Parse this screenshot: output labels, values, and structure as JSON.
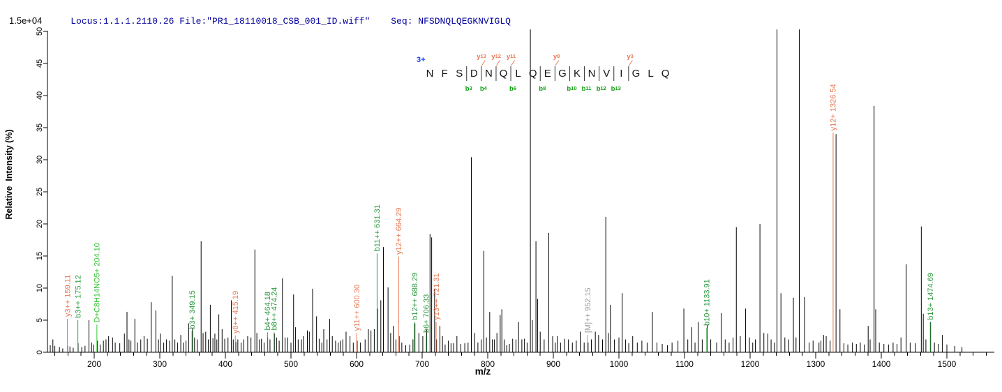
{
  "header": {
    "locus_file_text": "Locus:1.1.1.2110.26 File:\"PR1_18110018_CSB_001_ID.wiff\"",
    "seq_text": "Seq: NFSDNQLQEGKNVIGLQ"
  },
  "colors": {
    "header_text": "#0000A0",
    "peak": "#000000",
    "y_ion": "#E87A55",
    "b_ion": "#2E9A40",
    "special_ion": "#35C435",
    "precursor_ion": "#9C9C9C",
    "sequence_b_marker": "#0FA00F",
    "sequence_y_marker": "#E87A55",
    "charge_label": "#1A3EE8",
    "axis": "#000000"
  },
  "chart_data": {
    "type": "bar",
    "title": "",
    "xlabel": "m/z",
    "ylabel": "Relative  Intensity (%)",
    "intensity_scale": "1.5e+04",
    "xlim": [
      128,
      1572
    ],
    "ylim": [
      0,
      50.5
    ],
    "x_major_ticks": [
      200,
      300,
      400,
      500,
      600,
      700,
      800,
      900,
      1000,
      1100,
      1200,
      1300,
      1400,
      1500
    ],
    "x_minor_tick_step": 20,
    "y_ticks": [
      0,
      5,
      10,
      15,
      20,
      25,
      30,
      35,
      40,
      45,
      50
    ],
    "legend": "none",
    "grid": false,
    "peaks": [
      [
        133,
        1.1
      ],
      [
        137,
        2.0
      ],
      [
        140,
        1.0
      ],
      [
        147,
        0.8
      ],
      [
        152,
        0.6
      ],
      [
        159.5,
        1.0
      ],
      [
        163,
        0.9
      ],
      [
        168,
        0.7
      ],
      [
        175.5,
        1.4
      ],
      [
        181,
        0.8
      ],
      [
        186,
        1.0
      ],
      [
        192,
        5.0
      ],
      [
        196,
        1.5
      ],
      [
        199,
        1.2
      ],
      [
        205,
        1.8
      ],
      [
        209,
        1.2
      ],
      [
        214,
        1.8
      ],
      [
        218,
        2.0
      ],
      [
        222,
        2.5
      ],
      [
        228,
        2.3
      ],
      [
        232,
        1.5
      ],
      [
        239,
        1.4
      ],
      [
        246,
        2.9
      ],
      [
        250,
        6.3
      ],
      [
        253,
        2.0
      ],
      [
        256,
        1.8
      ],
      [
        262,
        5.2
      ],
      [
        266,
        1.5
      ],
      [
        271,
        2.0
      ],
      [
        276,
        2.5
      ],
      [
        281,
        2.1
      ],
      [
        287,
        7.8
      ],
      [
        294,
        6.5
      ],
      [
        298,
        2.0
      ],
      [
        301,
        2.9
      ],
      [
        306,
        1.5
      ],
      [
        310,
        2.0
      ],
      [
        315,
        1.8
      ],
      [
        319,
        11.9
      ],
      [
        323,
        2.0
      ],
      [
        327,
        1.5
      ],
      [
        332,
        2.7
      ],
      [
        336,
        1.5
      ],
      [
        340,
        1.8
      ],
      [
        344,
        4.5
      ],
      [
        350,
        3.8
      ],
      [
        353,
        2.3
      ],
      [
        357,
        2.0
      ],
      [
        363,
        17.3
      ],
      [
        366,
        3.0
      ],
      [
        370,
        3.2
      ],
      [
        374,
        2.0
      ],
      [
        377,
        7.4
      ],
      [
        381,
        2.2
      ],
      [
        384,
        2.9
      ],
      [
        387,
        2.0
      ],
      [
        390,
        5.9
      ],
      [
        395,
        3.6
      ],
      [
        399,
        2.1
      ],
      [
        404,
        2.3
      ],
      [
        409,
        8.1
      ],
      [
        412,
        2.0
      ],
      [
        416,
        1.6
      ],
      [
        419,
        2.0
      ],
      [
        424,
        1.5
      ],
      [
        428,
        2.0
      ],
      [
        434,
        2.5
      ],
      [
        439,
        2.3
      ],
      [
        445,
        16.0
      ],
      [
        448,
        3.0
      ],
      [
        452,
        2.0
      ],
      [
        455,
        2.1
      ],
      [
        459,
        1.5
      ],
      [
        464.5,
        2.3
      ],
      [
        468,
        2.0
      ],
      [
        474.8,
        2.9
      ],
      [
        478,
        2.3
      ],
      [
        482,
        1.8
      ],
      [
        487,
        11.5
      ],
      [
        491,
        2.3
      ],
      [
        495,
        2.3
      ],
      [
        500,
        1.5
      ],
      [
        504,
        9.0
      ],
      [
        507,
        3.9
      ],
      [
        511,
        2.0
      ],
      [
        516,
        2.0
      ],
      [
        519,
        2.5
      ],
      [
        525,
        3.4
      ],
      [
        528,
        3.2
      ],
      [
        533,
        9.9
      ],
      [
        539,
        5.6
      ],
      [
        543,
        2.1
      ],
      [
        547,
        1.5
      ],
      [
        550,
        3.6
      ],
      [
        555,
        2.0
      ],
      [
        559,
        5.2
      ],
      [
        563,
        2.5
      ],
      [
        568,
        1.8
      ],
      [
        572,
        1.5
      ],
      [
        575,
        1.8
      ],
      [
        579,
        2.0
      ],
      [
        584,
        3.2
      ],
      [
        590,
        2.5
      ],
      [
        595,
        1.5
      ],
      [
        601,
        1.8
      ],
      [
        606,
        1.5
      ],
      [
        613,
        2.0
      ],
      [
        618,
        3.6
      ],
      [
        622,
        3.4
      ],
      [
        627,
        3.6
      ],
      [
        632,
        6.8
      ],
      [
        637,
        8.1
      ],
      [
        641,
        16.4
      ],
      [
        648,
        10.1
      ],
      [
        652,
        3.0
      ],
      [
        656,
        4.1
      ],
      [
        660,
        2.0
      ],
      [
        665,
        2.5
      ],
      [
        669,
        1.5
      ],
      [
        675,
        1.1
      ],
      [
        681,
        1.2
      ],
      [
        686,
        2.0
      ],
      [
        689,
        4.5
      ],
      [
        695,
        3.0
      ],
      [
        701,
        2.5
      ],
      [
        707,
        3.5
      ],
      [
        712,
        18.4
      ],
      [
        714.5,
        17.9
      ],
      [
        719,
        9.9
      ],
      [
        722,
        2.0
      ],
      [
        727,
        4.1
      ],
      [
        731,
        2.5
      ],
      [
        735,
        1.2
      ],
      [
        740,
        1.8
      ],
      [
        744,
        1.4
      ],
      [
        748,
        1.4
      ],
      [
        753,
        2.5
      ],
      [
        759,
        1.3
      ],
      [
        765,
        1.4
      ],
      [
        770,
        1.5
      ],
      [
        775,
        30.4
      ],
      [
        780,
        3.0
      ],
      [
        785,
        1.5
      ],
      [
        790,
        2.0
      ],
      [
        794,
        15.8
      ],
      [
        798,
        2.3
      ],
      [
        803,
        6.3
      ],
      [
        807,
        2.0
      ],
      [
        810,
        2.0
      ],
      [
        814,
        3.0
      ],
      [
        819,
        5.8
      ],
      [
        821.5,
        6.7
      ],
      [
        825,
        2.0
      ],
      [
        829,
        1.1
      ],
      [
        833,
        1.3
      ],
      [
        838,
        2.1
      ],
      [
        843,
        2.0
      ],
      [
        847,
        4.7
      ],
      [
        852,
        2.0
      ],
      [
        856,
        2.1
      ],
      [
        860,
        1.5
      ],
      [
        865,
        50.3
      ],
      [
        868,
        5.0
      ],
      [
        873.5,
        17.3
      ],
      [
        876,
        8.3
      ],
      [
        880,
        3.2
      ],
      [
        886,
        2.0
      ],
      [
        893,
        18.6
      ],
      [
        899,
        2.5
      ],
      [
        903,
        1.5
      ],
      [
        906,
        2.5
      ],
      [
        911,
        1.5
      ],
      [
        917,
        2.1
      ],
      [
        923,
        2.0
      ],
      [
        929,
        1.5
      ],
      [
        935,
        1.8
      ],
      [
        941,
        3.2
      ],
      [
        947,
        1.5
      ],
      [
        953,
        1.5
      ],
      [
        958,
        2.0
      ],
      [
        964,
        3.2
      ],
      [
        969,
        2.7
      ],
      [
        975,
        2.0
      ],
      [
        980,
        21.1
      ],
      [
        984,
        3.0
      ],
      [
        987,
        7.4
      ],
      [
        993,
        2.0
      ],
      [
        1000,
        2.3
      ],
      [
        1005,
        9.2
      ],
      [
        1010,
        2.0
      ],
      [
        1015,
        1.4
      ],
      [
        1021,
        2.5
      ],
      [
        1028,
        1.5
      ],
      [
        1035,
        1.8
      ],
      [
        1043,
        1.5
      ],
      [
        1051,
        6.3
      ],
      [
        1058,
        1.5
      ],
      [
        1066,
        1.3
      ],
      [
        1074,
        1.1
      ],
      [
        1081,
        1.5
      ],
      [
        1090,
        1.8
      ],
      [
        1099,
        6.8
      ],
      [
        1105,
        2.0
      ],
      [
        1111,
        3.9
      ],
      [
        1116,
        1.5
      ],
      [
        1121,
        4.7
      ],
      [
        1127,
        2.0
      ],
      [
        1134.5,
        4.3
      ],
      [
        1140,
        2.0
      ],
      [
        1149,
        1.5
      ],
      [
        1156,
        6.1
      ],
      [
        1162,
        2.0
      ],
      [
        1168,
        1.5
      ],
      [
        1174,
        2.3
      ],
      [
        1179,
        19.5
      ],
      [
        1185,
        2.5
      ],
      [
        1193,
        6.8
      ],
      [
        1199,
        2.3
      ],
      [
        1204,
        1.5
      ],
      [
        1208,
        2.0
      ],
      [
        1215,
        20.0
      ],
      [
        1221,
        3.0
      ],
      [
        1227,
        2.9
      ],
      [
        1232,
        2.0
      ],
      [
        1237,
        1.5
      ],
      [
        1241,
        50.3
      ],
      [
        1247,
        9.2
      ],
      [
        1253,
        2.3
      ],
      [
        1259,
        2.0
      ],
      [
        1266,
        8.5
      ],
      [
        1270,
        2.3
      ],
      [
        1275,
        50.3
      ],
      [
        1283,
        8.6
      ],
      [
        1290,
        1.5
      ],
      [
        1296,
        1.8
      ],
      [
        1305,
        1.5
      ],
      [
        1308,
        1.8
      ],
      [
        1312,
        2.7
      ],
      [
        1316,
        2.5
      ],
      [
        1322,
        1.8
      ],
      [
        1331,
        34.0
      ],
      [
        1337,
        6.7
      ],
      [
        1343,
        1.4
      ],
      [
        1349,
        1.2
      ],
      [
        1356,
        1.5
      ],
      [
        1362,
        1.3
      ],
      [
        1368,
        1.5
      ],
      [
        1374,
        1.2
      ],
      [
        1380,
        4.1
      ],
      [
        1383,
        2.0
      ],
      [
        1389,
        38.4
      ],
      [
        1391.5,
        6.7
      ],
      [
        1397,
        1.5
      ],
      [
        1404,
        1.3
      ],
      [
        1411,
        1.2
      ],
      [
        1418,
        1.5
      ],
      [
        1424,
        1.3
      ],
      [
        1430,
        2.3
      ],
      [
        1438,
        13.7
      ],
      [
        1444,
        1.5
      ],
      [
        1452,
        1.4
      ],
      [
        1461,
        19.6
      ],
      [
        1464,
        6.0
      ],
      [
        1468,
        2.0
      ],
      [
        1475.2,
        4.7
      ],
      [
        1481,
        1.5
      ],
      [
        1487,
        1.3
      ],
      [
        1493,
        2.7
      ],
      [
        1500,
        1.2
      ],
      [
        1512,
        1.0
      ],
      [
        1523,
        0.8
      ]
    ],
    "labeled_peaks": [
      {
        "label": "y3++ 159.11",
        "mz": 159.11,
        "ion": "y",
        "line_top_pct": 5.2
      },
      {
        "label": "b3++ 175.12",
        "mz": 175.12,
        "ion": "b",
        "line_top_pct": 5.0
      },
      {
        "label": "D+C8H14NO5+ 204.10",
        "mz": 204.1,
        "ion": "special",
        "line_top_pct": 4.3
      },
      {
        "label": "b3+ 349.15",
        "mz": 349.15,
        "ion": "b",
        "line_top_pct": 3.3
      },
      {
        "label": "y8++ 415.19",
        "mz": 415.19,
        "ion": "y",
        "line_top_pct": 2.6
      },
      {
        "label": "b4+ 464.18",
        "mz": 464.18,
        "ion": "b",
        "line_top_pct": 3.1
      },
      {
        "label": "b8++ 474.24",
        "mz": 474.24,
        "ion": "b",
        "line_top_pct": 3.1
      },
      {
        "label": "y11++ 600.30",
        "mz": 600.3,
        "ion": "y",
        "line_top_pct": 3.0
      },
      {
        "label": "b11++ 631.31",
        "mz": 631.31,
        "ion": "b",
        "line_top_pct": 15.4
      },
      {
        "label": "y12++ 664.29",
        "mz": 664.29,
        "ion": "y",
        "line_top_pct": 14.9
      },
      {
        "label": "b12++ 688.29",
        "mz": 688.29,
        "ion": "b",
        "line_top_pct": 4.7
      },
      {
        "label": "b6+ 706.33",
        "mz": 706.33,
        "ion": "b",
        "line_top_pct": 2.7
      },
      {
        "label": "y13++ 721.31",
        "mz": 721.31,
        "ion": "y",
        "line_top_pct": 4.7
      },
      {
        "label": "[M]++ 952.15",
        "mz": 952.15,
        "ion": "precursor",
        "line_top_pct": 2.7
      },
      {
        "label": "b10+ 1133.91",
        "mz": 1133.91,
        "ion": "b",
        "line_top_pct": 3.8
      },
      {
        "label": "y12+ 1326.54",
        "mz": 1326.54,
        "ion": "y",
        "line_top_pct": 34.2
      },
      {
        "label": "b13+ 1474.69",
        "mz": 1474.69,
        "ion": "b",
        "line_top_pct": 4.7
      }
    ]
  },
  "sequence_annotation": {
    "charge_label": "3+",
    "residues": [
      "N",
      "F",
      "S",
      "D",
      "N",
      "Q",
      "L",
      "Q",
      "E",
      "G",
      "K",
      "N",
      "V",
      "I",
      "G",
      "L",
      "Q"
    ],
    "b_markers": [
      {
        "label": "b3",
        "after_residue": 3
      },
      {
        "label": "b4",
        "after_residue": 4
      },
      {
        "label": "b6",
        "after_residue": 6
      },
      {
        "label": "b8",
        "after_residue": 8
      },
      {
        "label": "b10",
        "after_residue": 10
      },
      {
        "label": "b11",
        "after_residue": 11
      },
      {
        "label": "b12",
        "after_residue": 12
      },
      {
        "label": "b13",
        "after_residue": 13
      }
    ],
    "y_markers": [
      {
        "label": "y13",
        "after_residue": 4
      },
      {
        "label": "y12",
        "after_residue": 5
      },
      {
        "label": "y11",
        "after_residue": 6
      },
      {
        "label": "y8",
        "after_residue": 9
      },
      {
        "label": "y3",
        "after_residue": 14
      }
    ]
  }
}
